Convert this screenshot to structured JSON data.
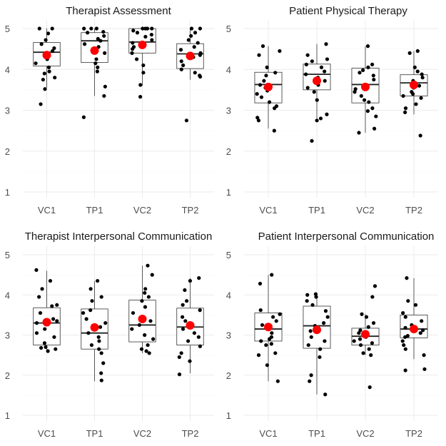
{
  "chart_data": [
    {
      "type": "box",
      "title": "Therapist Assessment",
      "categories": [
        "VC1",
        "TP1",
        "VC2",
        "TP2"
      ],
      "ylim": [
        1,
        5
      ],
      "yticks": [
        1,
        2,
        3,
        4,
        5
      ],
      "grid": true,
      "boxes": [
        {
          "q1": 4.08,
          "median": 4.42,
          "q3": 4.66,
          "whisker_low": 3.55,
          "whisker_high": 5.0,
          "mean": 4.35
        },
        {
          "q1": 4.17,
          "median": 4.7,
          "q3": 4.9,
          "whisker_low": 3.35,
          "whisker_high": 5.0,
          "mean": 4.46
        },
        {
          "q1": 4.4,
          "median": 4.67,
          "q3": 5.0,
          "whisker_low": 3.6,
          "whisker_high": 5.0,
          "mean": 4.6
        },
        {
          "q1": 4.02,
          "median": 4.38,
          "q3": 4.63,
          "whisker_low": 3.75,
          "whisker_high": 5.0,
          "mean": 4.33
        }
      ],
      "points": [
        [
          5.0,
          5.0,
          4.88,
          4.72,
          4.62,
          4.52,
          4.45,
          4.4,
          4.3,
          4.25,
          4.15,
          4.05,
          3.95,
          3.9,
          3.8,
          3.75,
          3.52,
          3.15
        ],
        [
          5.0,
          5.0,
          5.0,
          4.92,
          4.9,
          4.82,
          4.75,
          4.7,
          4.62,
          4.55,
          4.4,
          4.25,
          4.15,
          4.05,
          3.95,
          3.58,
          3.35,
          2.83
        ],
        [
          5.0,
          5.0,
          5.0,
          5.0,
          4.95,
          4.9,
          4.85,
          4.8,
          4.72,
          4.65,
          4.55,
          4.5,
          4.4,
          4.25,
          4.1,
          3.92,
          3.62,
          3.33
        ],
        [
          5.0,
          5.0,
          4.9,
          4.82,
          4.72,
          4.65,
          4.55,
          4.48,
          4.4,
          4.35,
          4.3,
          4.2,
          4.1,
          4.0,
          3.92,
          3.85,
          3.82,
          2.75
        ]
      ]
    },
    {
      "type": "box",
      "title": "Patient Physical Therapy",
      "categories": [
        "VC1",
        "TP1",
        "VC2",
        "TP2"
      ],
      "ylim": [
        1,
        5
      ],
      "yticks": [
        1,
        2,
        3,
        4,
        5
      ],
      "grid": true,
      "boxes": [
        {
          "q1": 3.18,
          "median": 3.63,
          "q3": 3.93,
          "whisker_low": 2.55,
          "whisker_high": 4.57,
          "mean": 3.57
        },
        {
          "q1": 3.5,
          "median": 3.88,
          "q3": 4.13,
          "whisker_low": 2.8,
          "whisker_high": 4.62,
          "mean": 3.72
        },
        {
          "q1": 3.18,
          "median": 3.63,
          "q3": 4.03,
          "whisker_low": 2.45,
          "whisker_high": 4.57,
          "mean": 3.57
        },
        {
          "q1": 3.35,
          "median": 3.67,
          "q3": 3.87,
          "whisker_low": 2.9,
          "whisker_high": 4.45,
          "mean": 3.62
        }
      ],
      "points": [
        [
          4.57,
          4.45,
          4.35,
          4.05,
          3.92,
          3.85,
          3.72,
          3.62,
          3.55,
          3.48,
          3.4,
          3.32,
          3.2,
          3.1,
          3.05,
          2.82,
          2.75,
          2.5
        ],
        [
          4.62,
          4.35,
          4.25,
          4.2,
          4.12,
          4.05,
          3.95,
          3.88,
          3.8,
          3.72,
          3.62,
          3.55,
          3.45,
          3.25,
          2.9,
          2.8,
          2.75,
          2.25
        ],
        [
          4.57,
          4.12,
          4.05,
          3.98,
          3.92,
          3.85,
          3.75,
          3.62,
          3.52,
          3.45,
          3.35,
          3.25,
          3.2,
          3.05,
          2.98,
          2.85,
          2.55,
          2.45
        ],
        [
          4.45,
          4.4,
          4.05,
          3.95,
          3.88,
          3.8,
          3.72,
          3.65,
          3.6,
          3.55,
          3.45,
          3.4,
          3.35,
          3.3,
          3.15,
          3.05,
          2.95,
          2.38
        ]
      ]
    },
    {
      "type": "box",
      "title": "Therapist Interpersonal Communication",
      "categories": [
        "VC1",
        "TP1",
        "VC2",
        "TP2"
      ],
      "ylim": [
        1,
        5
      ],
      "yticks": [
        1,
        2,
        3,
        4,
        5
      ],
      "grid": true,
      "boxes": [
        {
          "q1": 2.75,
          "median": 3.3,
          "q3": 3.68,
          "whisker_low": 2.6,
          "whisker_high": 4.6,
          "mean": 3.32
        },
        {
          "q1": 2.65,
          "median": 3.05,
          "q3": 3.65,
          "whisker_low": 1.85,
          "whisker_high": 4.35,
          "mean": 3.19
        },
        {
          "q1": 2.83,
          "median": 3.25,
          "q3": 3.87,
          "whisker_low": 2.55,
          "whisker_high": 4.73,
          "mean": 3.4
        },
        {
          "q1": 2.75,
          "median": 3.2,
          "q3": 3.67,
          "whisker_low": 2.05,
          "whisker_high": 4.42,
          "mean": 3.24
        }
      ],
      "points": [
        [
          4.62,
          4.35,
          4.15,
          3.95,
          3.75,
          3.72,
          3.55,
          3.4,
          3.35,
          3.3,
          3.15,
          3.05,
          2.95,
          2.8,
          2.7,
          2.68,
          2.65,
          2.6
        ],
        [
          4.35,
          4.15,
          3.95,
          3.85,
          3.62,
          3.55,
          3.4,
          3.3,
          3.2,
          3.05,
          2.95,
          2.85,
          2.75,
          2.65,
          2.55,
          2.3,
          2.05,
          1.87
        ],
        [
          4.73,
          4.5,
          4.15,
          4.05,
          3.95,
          3.85,
          3.7,
          3.55,
          3.45,
          3.35,
          3.25,
          3.15,
          3.0,
          2.9,
          2.75,
          2.65,
          2.6,
          2.55
        ],
        [
          4.42,
          4.35,
          4.12,
          3.85,
          3.75,
          3.62,
          3.45,
          3.35,
          3.25,
          3.15,
          3.05,
          2.95,
          2.85,
          2.72,
          2.55,
          2.45,
          2.35,
          2.02
        ]
      ]
    },
    {
      "type": "box",
      "title": "Patient Interpersonal Communication",
      "categories": [
        "VC1",
        "TP1",
        "VC2",
        "TP2"
      ],
      "ylim": [
        1,
        5
      ],
      "yticks": [
        1,
        2,
        3,
        4,
        5
      ],
      "grid": true,
      "boxes": [
        {
          "q1": 2.85,
          "median": 3.15,
          "q3": 3.55,
          "whisker_low": 1.85,
          "whisker_high": 4.5,
          "mean": 3.2
        },
        {
          "q1": 2.67,
          "median": 3.23,
          "q3": 3.72,
          "whisker_low": 1.52,
          "whisker_high": 4.02,
          "mean": 3.13
        },
        {
          "q1": 2.75,
          "median": 2.97,
          "q3": 3.17,
          "whisker_low": 2.5,
          "whisker_high": 3.52,
          "mean": 3.02
        },
        {
          "q1": 2.93,
          "median": 3.15,
          "q3": 3.5,
          "whisker_low": 2.4,
          "whisker_high": 4.42,
          "mean": 3.15
        }
      ],
      "points": [
        [
          4.5,
          4.28,
          3.62,
          3.52,
          3.45,
          3.35,
          3.25,
          3.15,
          3.05,
          2.95,
          2.9,
          2.85,
          2.78,
          2.75,
          2.55,
          2.5,
          2.25,
          1.85
        ],
        [
          4.02,
          4.0,
          3.95,
          3.85,
          3.75,
          3.6,
          3.45,
          3.3,
          3.23,
          3.1,
          2.95,
          2.85,
          2.75,
          2.65,
          2.45,
          2.0,
          1.85,
          1.52
        ],
        [
          4.22,
          3.95,
          3.52,
          3.45,
          3.3,
          3.2,
          3.12,
          3.05,
          3.0,
          2.95,
          2.9,
          2.85,
          2.8,
          2.75,
          2.65,
          2.55,
          2.5,
          1.7
        ],
        [
          4.42,
          3.85,
          3.75,
          3.55,
          3.45,
          3.35,
          3.25,
          3.18,
          3.12,
          3.05,
          2.98,
          2.95,
          2.85,
          2.75,
          2.65,
          2.5,
          2.15,
          2.12
        ]
      ]
    }
  ]
}
